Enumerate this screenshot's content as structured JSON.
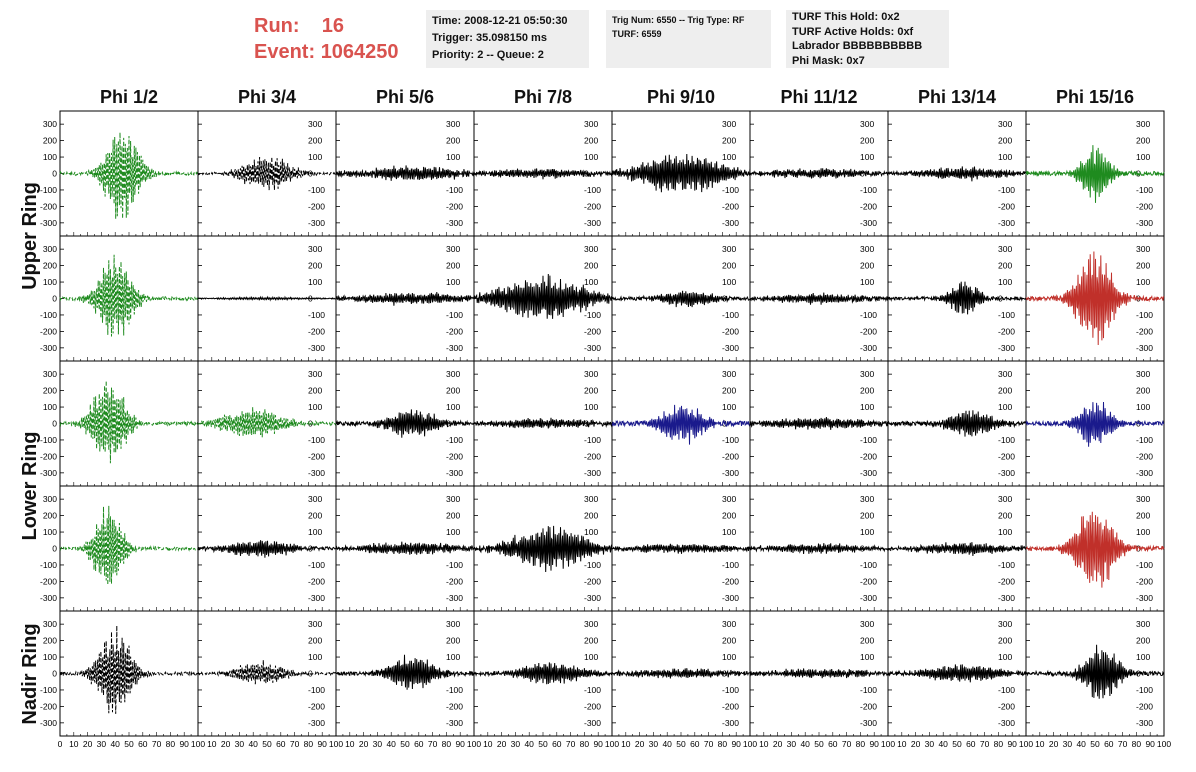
{
  "header": {
    "run_label": "Run:",
    "run_value": "16",
    "event_label": "Event:",
    "event_value": "1064250"
  },
  "info_boxes": [
    {
      "lines": [
        "Time: 2008-12-21 05:50:30",
        "Trigger: 35.098150 ms",
        "Priority: 2 -- Queue: 2"
      ]
    },
    {
      "lines": [
        "Trig Num: 6550 -- Trig Type: RF",
        "",
        "TURF: 6559"
      ]
    },
    {
      "lines": [
        "TURF This Hold: 0x2",
        "TURF Active Holds: 0xf",
        "Labrador BBBBBBBBBB",
        "Phi Mask: 0x7"
      ]
    }
  ],
  "columns": [
    "Phi 1/2",
    "Phi 3/4",
    "Phi 5/6",
    "Phi 7/8",
    "Phi 9/10",
    "Phi 11/12",
    "Phi 13/14",
    "Phi 15/16"
  ],
  "rings": [
    "Upper Ring",
    "Lower Ring",
    "Nadir Ring"
  ],
  "colors": {
    "black": "#000000",
    "green": "#1f8b1f",
    "blue": "#1a1a8c",
    "red": "#c0302a",
    "title_red": "#d9534f",
    "box_bg": "#eeeeee"
  },
  "chart_data": {
    "type": "line",
    "title": "",
    "xlabel": "",
    "ylabel": "",
    "xlim": [
      0,
      100
    ],
    "ylim": [
      -380,
      380
    ],
    "y_ticks": [
      300,
      200,
      100,
      0,
      -100,
      -200,
      -300
    ],
    "y_tick_labels": [
      "300",
      "200",
      "100",
      "0",
      "-100",
      "-200",
      "-300"
    ],
    "x_ticks": [
      0,
      10,
      20,
      30,
      40,
      50,
      60,
      70,
      80,
      90,
      100
    ],
    "x_tick_labels": [
      "0",
      "10",
      "20",
      "30",
      "40",
      "50",
      "60",
      "70",
      "80",
      "90",
      "100"
    ],
    "row_groups": [
      {
        "ring": "Upper Ring",
        "rows": [
          0,
          1
        ]
      },
      {
        "ring": "Lower Ring",
        "rows": [
          2,
          3
        ]
      },
      {
        "ring": "Nadir Ring",
        "rows": [
          4
        ]
      }
    ],
    "panels": [
      [
        {
          "color": "green",
          "dashed": true,
          "amp": 320,
          "center": 45,
          "width": 14,
          "noise": 20
        },
        {
          "color": "black",
          "dashed": true,
          "amp": 120,
          "center": 50,
          "width": 20,
          "noise": 15
        },
        {
          "color": "black",
          "dashed": false,
          "amp": 45,
          "center": 55,
          "width": 40,
          "noise": 25
        },
        {
          "color": "black",
          "dashed": false,
          "amp": 30,
          "center": 50,
          "width": 40,
          "noise": 20
        },
        {
          "color": "black",
          "dashed": false,
          "amp": 130,
          "center": 50,
          "width": 35,
          "noise": 30
        },
        {
          "color": "black",
          "dashed": false,
          "amp": 30,
          "center": 50,
          "width": 40,
          "noise": 20
        },
        {
          "color": "black",
          "dashed": false,
          "amp": 40,
          "center": 55,
          "width": 35,
          "noise": 20
        },
        {
          "color": "green",
          "dashed": false,
          "amp": 180,
          "center": 50,
          "width": 12,
          "noise": 25
        }
      ],
      [
        {
          "color": "green",
          "dashed": true,
          "amp": 300,
          "center": 40,
          "width": 14,
          "noise": 20
        },
        {
          "color": "black",
          "dashed": false,
          "amp": 8,
          "center": 50,
          "width": 40,
          "noise": 4
        },
        {
          "color": "black",
          "dashed": false,
          "amp": 40,
          "center": 55,
          "width": 40,
          "noise": 20
        },
        {
          "color": "black",
          "dashed": false,
          "amp": 150,
          "center": 50,
          "width": 35,
          "noise": 30
        },
        {
          "color": "black",
          "dashed": false,
          "amp": 60,
          "center": 55,
          "width": 20,
          "noise": 20
        },
        {
          "color": "black",
          "dashed": false,
          "amp": 30,
          "center": 50,
          "width": 40,
          "noise": 20
        },
        {
          "color": "black",
          "dashed": false,
          "amp": 120,
          "center": 55,
          "width": 12,
          "noise": 20
        },
        {
          "color": "red",
          "dashed": false,
          "amp": 320,
          "center": 50,
          "width": 15,
          "noise": 25
        }
      ],
      [
        {
          "color": "green",
          "dashed": true,
          "amp": 300,
          "center": 35,
          "width": 14,
          "noise": 20
        },
        {
          "color": "green",
          "dashed": true,
          "amp": 100,
          "center": 40,
          "width": 25,
          "noise": 20
        },
        {
          "color": "black",
          "dashed": false,
          "amp": 100,
          "center": 55,
          "width": 20,
          "noise": 25
        },
        {
          "color": "black",
          "dashed": false,
          "amp": 30,
          "center": 50,
          "width": 40,
          "noise": 20
        },
        {
          "color": "blue",
          "dashed": false,
          "amp": 130,
          "center": 50,
          "width": 18,
          "noise": 30
        },
        {
          "color": "black",
          "dashed": false,
          "amp": 40,
          "center": 50,
          "width": 40,
          "noise": 20
        },
        {
          "color": "black",
          "dashed": false,
          "amp": 90,
          "center": 60,
          "width": 20,
          "noise": 25
        },
        {
          "color": "blue",
          "dashed": false,
          "amp": 160,
          "center": 50,
          "width": 14,
          "noise": 25
        }
      ],
      [
        {
          "color": "green",
          "dashed": true,
          "amp": 280,
          "center": 35,
          "width": 12,
          "noise": 20
        },
        {
          "color": "black",
          "dashed": false,
          "amp": 60,
          "center": 45,
          "width": 25,
          "noise": 20
        },
        {
          "color": "black",
          "dashed": false,
          "amp": 40,
          "center": 55,
          "width": 40,
          "noise": 20
        },
        {
          "color": "black",
          "dashed": false,
          "amp": 150,
          "center": 55,
          "width": 30,
          "noise": 30
        },
        {
          "color": "black",
          "dashed": false,
          "amp": 30,
          "center": 50,
          "width": 40,
          "noise": 20
        },
        {
          "color": "black",
          "dashed": false,
          "amp": 30,
          "center": 50,
          "width": 40,
          "noise": 20
        },
        {
          "color": "black",
          "dashed": false,
          "amp": 40,
          "center": 55,
          "width": 35,
          "noise": 20
        },
        {
          "color": "red",
          "dashed": false,
          "amp": 290,
          "center": 50,
          "width": 16,
          "noise": 25
        }
      ],
      [
        {
          "color": "black",
          "dashed": true,
          "amp": 300,
          "center": 40,
          "width": 14,
          "noise": 20
        },
        {
          "color": "black",
          "dashed": true,
          "amp": 80,
          "center": 45,
          "width": 20,
          "noise": 15
        },
        {
          "color": "black",
          "dashed": false,
          "amp": 120,
          "center": 55,
          "width": 18,
          "noise": 25
        },
        {
          "color": "black",
          "dashed": false,
          "amp": 80,
          "center": 55,
          "width": 25,
          "noise": 20
        },
        {
          "color": "black",
          "dashed": false,
          "amp": 30,
          "center": 50,
          "width": 40,
          "noise": 20
        },
        {
          "color": "black",
          "dashed": false,
          "amp": 30,
          "center": 50,
          "width": 40,
          "noise": 20
        },
        {
          "color": "black",
          "dashed": false,
          "amp": 60,
          "center": 55,
          "width": 30,
          "noise": 20
        },
        {
          "color": "black",
          "dashed": false,
          "amp": 200,
          "center": 55,
          "width": 14,
          "noise": 25
        }
      ]
    ]
  }
}
